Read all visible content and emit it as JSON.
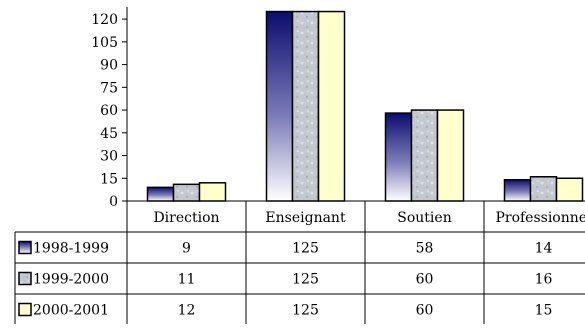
{
  "chart_data": {
    "type": "bar",
    "categories": [
      "Direction",
      "Enseignant",
      "Soutien",
      "Professionnel"
    ],
    "series": [
      {
        "name": "1998-1999",
        "values": [
          9,
          125,
          58,
          14
        ],
        "color": "#1a1a7a"
      },
      {
        "name": "1999-2000",
        "values": [
          11,
          125,
          60,
          16
        ],
        "color": "#c4c8cf"
      },
      {
        "name": "2000-2001",
        "values": [
          12,
          125,
          60,
          15
        ],
        "color": "#ffffcc"
      }
    ],
    "yticks": [
      0,
      15,
      30,
      45,
      60,
      75,
      90,
      105,
      120
    ],
    "ylim": [
      0,
      128
    ],
    "grid": false,
    "legend": "data-table-left"
  }
}
